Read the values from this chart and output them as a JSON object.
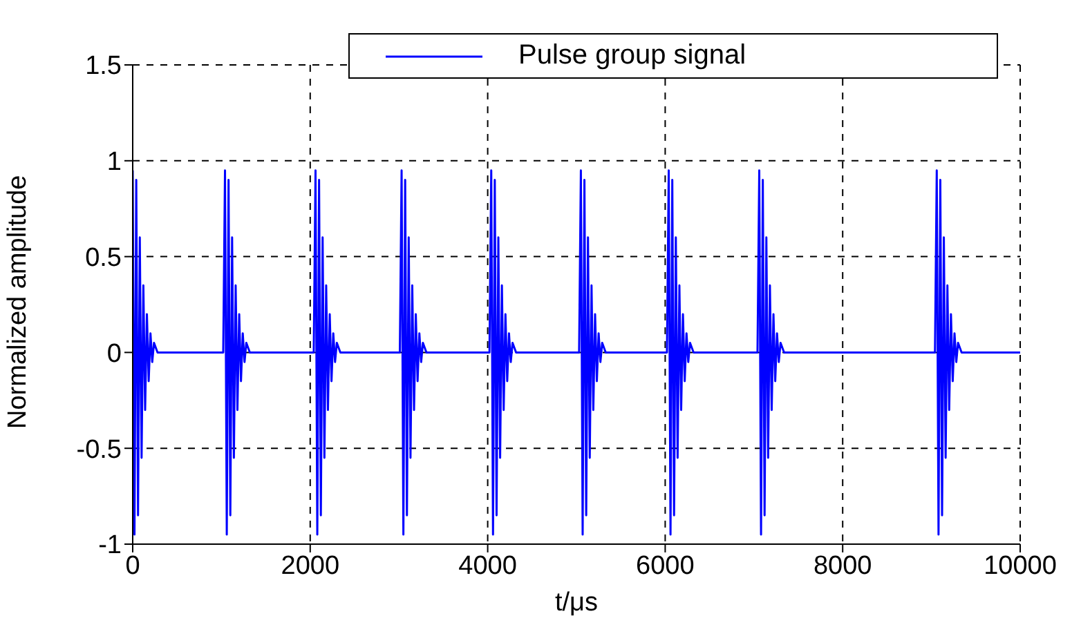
{
  "chart_data": {
    "type": "line",
    "xlabel": "t/μs",
    "ylabel": "Normalized amplitude",
    "x": [
      0,
      20,
      40,
      60,
      80,
      100,
      120,
      140,
      160,
      180,
      200,
      220,
      240,
      280,
      1020,
      1040,
      1060,
      1080,
      1100,
      1120,
      1140,
      1160,
      1180,
      1200,
      1220,
      1240,
      1260,
      1280,
      1320,
      2040,
      2060,
      2080,
      2100,
      2120,
      2140,
      2160,
      2180,
      2200,
      2220,
      2240,
      2260,
      2280,
      2300,
      2340,
      3010,
      3030,
      3050,
      3070,
      3090,
      3110,
      3130,
      3150,
      3170,
      3190,
      3210,
      3230,
      3250,
      3270,
      3310,
      4020,
      4040,
      4060,
      4080,
      4100,
      4120,
      4140,
      4160,
      4180,
      4200,
      4220,
      4240,
      4260,
      4280,
      4320,
      5030,
      5050,
      5070,
      5090,
      5110,
      5130,
      5150,
      5170,
      5190,
      5210,
      5230,
      5250,
      5270,
      5290,
      5330,
      6020,
      6040,
      6060,
      6080,
      6100,
      6120,
      6140,
      6160,
      6180,
      6200,
      6220,
      6240,
      6260,
      6280,
      6320,
      7040,
      7060,
      7080,
      7100,
      7120,
      7140,
      7160,
      7180,
      7200,
      7220,
      7240,
      7260,
      7280,
      7300,
      7340,
      9040,
      9060,
      9080,
      9100,
      9120,
      9140,
      9160,
      9180,
      9200,
      9220,
      9240,
      9260,
      9280,
      9300,
      9340,
      10000
    ],
    "series": [
      {
        "name": "Pulse group signal",
        "color": "#0000ff",
        "values": [
          0.95,
          -0.95,
          0.9,
          -0.85,
          0.6,
          -0.55,
          0.35,
          -0.3,
          0.2,
          -0.15,
          0.1,
          -0.05,
          0.05,
          0,
          0,
          0.95,
          -0.95,
          0.9,
          -0.85,
          0.6,
          -0.55,
          0.35,
          -0.3,
          0.2,
          -0.15,
          0.1,
          -0.05,
          0.05,
          0,
          0,
          0.95,
          -0.95,
          0.9,
          -0.85,
          0.6,
          -0.55,
          0.35,
          -0.3,
          0.2,
          -0.15,
          0.1,
          -0.05,
          0.05,
          0,
          0,
          0.95,
          -0.95,
          0.9,
          -0.85,
          0.6,
          -0.55,
          0.35,
          -0.3,
          0.2,
          -0.15,
          0.1,
          -0.05,
          0.05,
          0,
          0,
          0.95,
          -0.95,
          0.9,
          -0.85,
          0.6,
          -0.55,
          0.35,
          -0.3,
          0.2,
          -0.15,
          0.1,
          -0.05,
          0.05,
          0,
          0,
          0.95,
          -0.95,
          0.9,
          -0.85,
          0.6,
          -0.55,
          0.35,
          -0.3,
          0.2,
          -0.15,
          0.1,
          -0.05,
          0.05,
          0,
          0,
          0.95,
          -0.95,
          0.9,
          -0.85,
          0.6,
          -0.55,
          0.35,
          -0.3,
          0.2,
          -0.15,
          0.1,
          -0.05,
          0.05,
          0,
          0,
          0.95,
          -0.95,
          0.9,
          -0.85,
          0.6,
          -0.55,
          0.35,
          -0.3,
          0.2,
          -0.15,
          0.1,
          -0.05,
          0.05,
          0,
          0,
          0.95,
          -0.95,
          0.9,
          -0.85,
          0.6,
          -0.55,
          0.35,
          -0.3,
          0.2,
          -0.15,
          0.1,
          -0.05,
          0.05,
          0,
          0
        ]
      }
    ],
    "xlim": [
      0,
      10000
    ],
    "xticks": [
      0,
      2000,
      4000,
      6000,
      8000,
      10000
    ],
    "ylim": [
      -1,
      1.5
    ],
    "yticks": [
      -1,
      -0.5,
      0,
      0.5,
      1,
      1.5
    ],
    "grid": true,
    "legend": "top right",
    "marker": "none",
    "line_style": "solid"
  }
}
